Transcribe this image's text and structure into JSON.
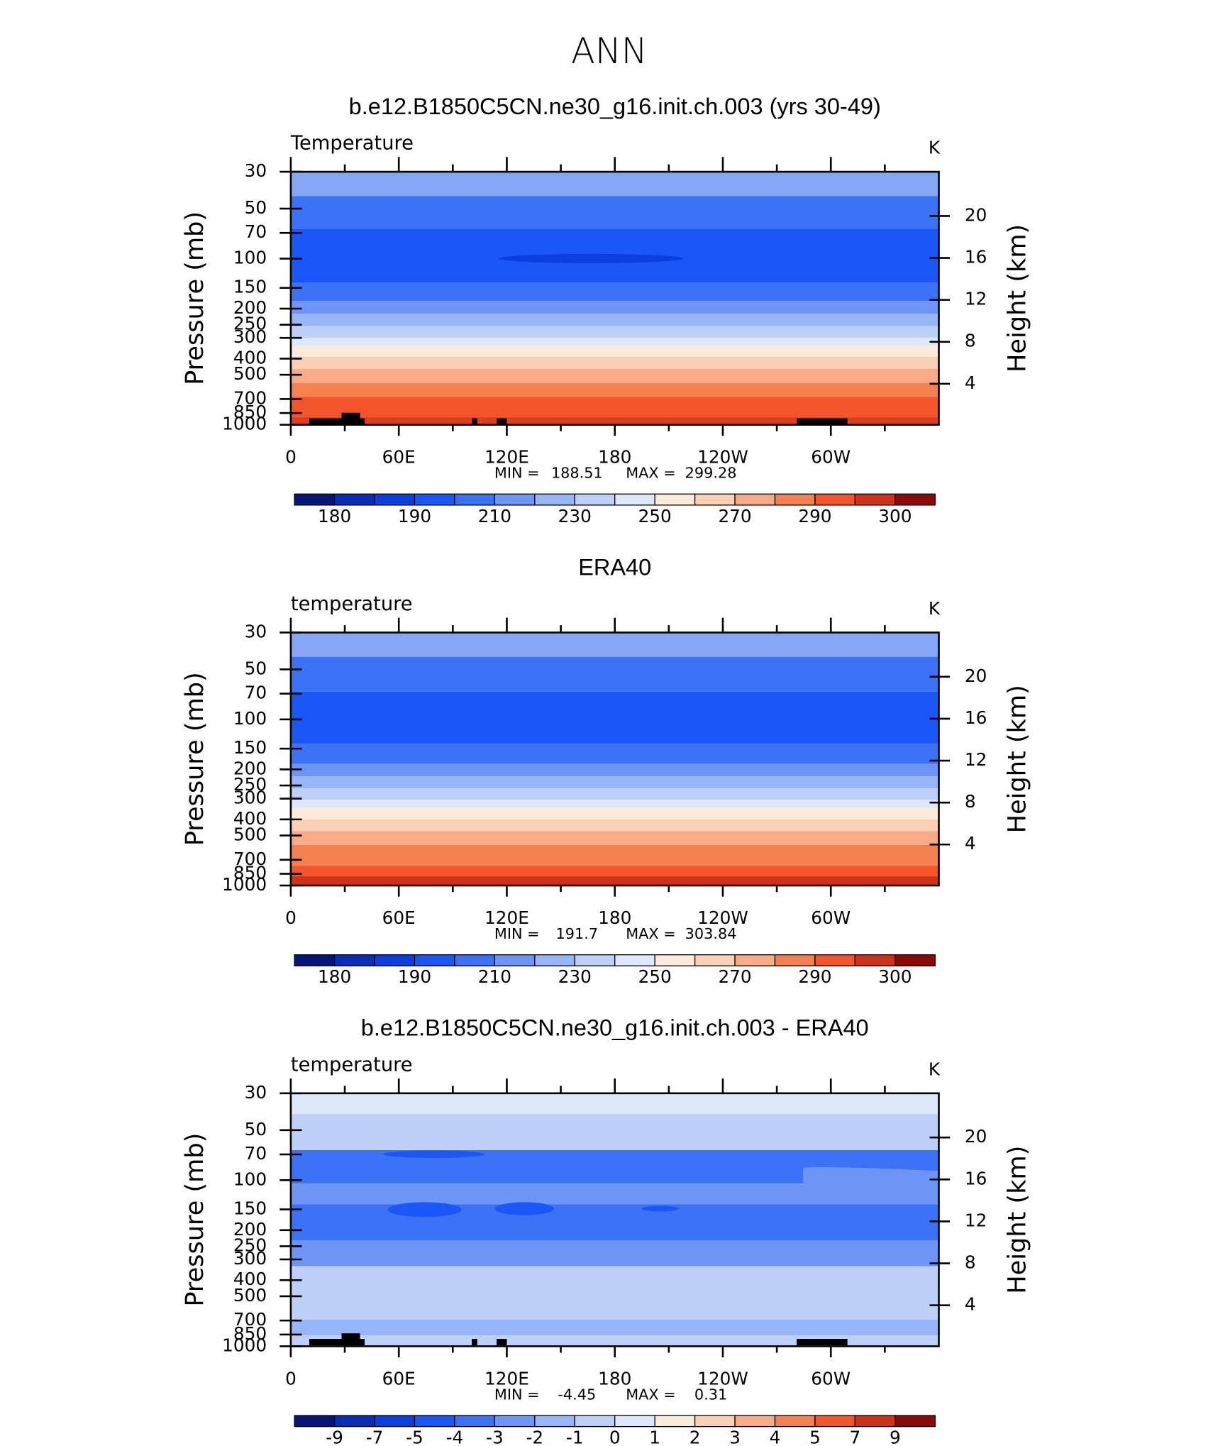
{
  "title": "ANN",
  "chart_data": [
    {
      "type": "contour",
      "title": "b.e12.B1850C5CN.ne30_g16.init.ch.003 (yrs 30-49)",
      "left_label": "Temperature",
      "units": "K",
      "ylabel": "Pressure (mb)",
      "y2label": "Height (km)",
      "ylog": true,
      "ylim": [
        1000,
        30
      ],
      "yticks": [
        30,
        50,
        70,
        100,
        150,
        200,
        250,
        300,
        400,
        500,
        700,
        850,
        1000
      ],
      "y2ticks": [
        4,
        8,
        12,
        16,
        20
      ],
      "xlim": [
        0,
        360
      ],
      "xticks": [
        0,
        {
          "value": 60,
          "label": "60E"
        },
        {
          "value": 120,
          "label": "120E"
        },
        180,
        {
          "value": 240,
          "label": "120W"
        },
        {
          "value": 300,
          "label": "60W"
        }
      ],
      "xminorticks": [
        30,
        90,
        150,
        210,
        270,
        330
      ],
      "min_label": "MIN =",
      "min": 188.51,
      "max_label": "MAX =",
      "max": 299.28,
      "bands": [
        {
          "from": 30,
          "to": 42,
          "color": "#84a6f5"
        },
        {
          "from": 42,
          "to": 66,
          "color": "#3b72f6"
        },
        {
          "from": 66,
          "to": 140,
          "color": "#1a56f8"
        },
        {
          "from": 140,
          "to": 180,
          "color": "#3b72f6"
        },
        {
          "from": 180,
          "to": 215,
          "color": "#6c95f6"
        },
        {
          "from": 215,
          "to": 255,
          "color": "#97b6f8"
        },
        {
          "from": 255,
          "to": 300,
          "color": "#bcd0fa"
        },
        {
          "from": 300,
          "to": 335,
          "color": "#dde8fb"
        },
        {
          "from": 335,
          "to": 390,
          "color": "#fcebd8"
        },
        {
          "from": 390,
          "to": 460,
          "color": "#fbd0b5"
        },
        {
          "from": 460,
          "to": 560,
          "color": "#f8ab86"
        },
        {
          "from": 560,
          "to": 680,
          "color": "#f58150"
        },
        {
          "from": 680,
          "to": 900,
          "color": "#f4552a"
        },
        {
          "from": 900,
          "to": 1000,
          "color": "#e0401c"
        }
      ],
      "colorbar": {
        "colors": [
          "#06157a",
          "#0a2cb8",
          "#0a3ee0",
          "#1a56f8",
          "#3b72f6",
          "#6c95f6",
          "#97b6f8",
          "#bcd0fa",
          "#dde8fb",
          "#fcebd8",
          "#fbd0b5",
          "#f8ab86",
          "#f58150",
          "#f4552a",
          "#cf3218",
          "#8c0a06"
        ],
        "levels": [
          180,
          null,
          190,
          null,
          210,
          null,
          230,
          null,
          250,
          null,
          270,
          null,
          290,
          null,
          300
        ]
      }
    },
    {
      "type": "contour",
      "title": "ERA40",
      "left_label": "temperature",
      "units": "K",
      "ylabel": "Pressure (mb)",
      "y2label": "Height (km)",
      "ylog": true,
      "ylim": [
        1000,
        30
      ],
      "yticks": [
        30,
        50,
        70,
        100,
        150,
        200,
        250,
        300,
        400,
        500,
        700,
        850,
        1000
      ],
      "y2ticks": [
        4,
        8,
        12,
        16,
        20
      ],
      "xlim": [
        0,
        360
      ],
      "xticks": [
        0,
        {
          "value": 60,
          "label": "60E"
        },
        {
          "value": 120,
          "label": "120E"
        },
        180,
        {
          "value": 240,
          "label": "120W"
        },
        {
          "value": 300,
          "label": "60W"
        }
      ],
      "xminorticks": [
        30,
        90,
        150,
        210,
        270,
        330
      ],
      "min_label": "MIN =",
      "min": 191.7,
      "max_label": "MAX =",
      "max": 303.84,
      "bands": [
        {
          "from": 30,
          "to": 42,
          "color": "#84a6f5"
        },
        {
          "from": 42,
          "to": 68,
          "color": "#3b72f6"
        },
        {
          "from": 68,
          "to": 140,
          "color": "#1a56f8"
        },
        {
          "from": 140,
          "to": 185,
          "color": "#3b72f6"
        },
        {
          "from": 185,
          "to": 220,
          "color": "#6c95f6"
        },
        {
          "from": 220,
          "to": 260,
          "color": "#97b6f8"
        },
        {
          "from": 260,
          "to": 305,
          "color": "#bcd0fa"
        },
        {
          "from": 305,
          "to": 340,
          "color": "#dde8fb"
        },
        {
          "from": 340,
          "to": 400,
          "color": "#fcebd8"
        },
        {
          "from": 400,
          "to": 470,
          "color": "#fbd0b5"
        },
        {
          "from": 470,
          "to": 570,
          "color": "#f8ab86"
        },
        {
          "from": 570,
          "to": 760,
          "color": "#f58150"
        },
        {
          "from": 760,
          "to": 880,
          "color": "#f4552a"
        },
        {
          "from": 880,
          "to": 1000,
          "color": "#cf3218"
        }
      ],
      "colorbar": {
        "colors": [
          "#06157a",
          "#0a2cb8",
          "#0a3ee0",
          "#1a56f8",
          "#3b72f6",
          "#6c95f6",
          "#97b6f8",
          "#bcd0fa",
          "#dde8fb",
          "#fcebd8",
          "#fbd0b5",
          "#f8ab86",
          "#f58150",
          "#f4552a",
          "#cf3218",
          "#8c0a06"
        ],
        "levels": [
          180,
          null,
          190,
          null,
          210,
          null,
          230,
          null,
          250,
          null,
          270,
          null,
          290,
          null,
          300
        ]
      }
    },
    {
      "type": "contour",
      "title": "b.e12.B1850C5CN.ne30_g16.init.ch.003 - ERA40",
      "left_label": "temperature",
      "units": "K",
      "ylabel": "Pressure (mb)",
      "y2label": "Height (km)",
      "ylog": true,
      "ylim": [
        1000,
        30
      ],
      "yticks": [
        30,
        50,
        70,
        100,
        150,
        200,
        250,
        300,
        400,
        500,
        700,
        850,
        1000
      ],
      "y2ticks": [
        4,
        8,
        12,
        16,
        20
      ],
      "xlim": [
        0,
        360
      ],
      "xticks": [
        0,
        {
          "value": 60,
          "label": "60E"
        },
        {
          "value": 120,
          "label": "120E"
        },
        180,
        {
          "value": 240,
          "label": "120W"
        },
        {
          "value": 300,
          "label": "60W"
        }
      ],
      "xminorticks": [
        30,
        90,
        150,
        210,
        270,
        330
      ],
      "min_label": "MIN =",
      "min": -4.45,
      "max_label": "MAX =",
      "max": 0.31,
      "bands": [
        {
          "from": 30,
          "to": 40,
          "color": "#dde8fb"
        },
        {
          "from": 40,
          "to": 66,
          "color": "#bcd0fa"
        },
        {
          "from": 66,
          "to": 105,
          "color": "#3b72f6"
        },
        {
          "from": 105,
          "to": 140,
          "color": "#6c95f6"
        },
        {
          "from": 140,
          "to": 230,
          "color": "#3b72f6"
        },
        {
          "from": 230,
          "to": 330,
          "color": "#6c95f6"
        },
        {
          "from": 330,
          "to": 690,
          "color": "#bcd0fa"
        },
        {
          "from": 690,
          "to": 860,
          "color": "#97b6f8"
        },
        {
          "from": 860,
          "to": 1000,
          "color": "#bcd0fa"
        }
      ],
      "colorbar": {
        "colors": [
          "#06157a",
          "#0a2cb8",
          "#0a3ee0",
          "#1a56f8",
          "#3b72f6",
          "#6c95f6",
          "#97b6f8",
          "#bcd0fa",
          "#dde8fb",
          "#fcebd8",
          "#fbd0b5",
          "#f8ab86",
          "#f58150",
          "#f4552a",
          "#cf3218",
          "#8c0a06"
        ],
        "levels": [
          -9,
          -7,
          -5,
          -4,
          -3,
          -2,
          -1,
          0,
          1,
          2,
          3,
          4,
          5,
          7,
          9
        ]
      }
    }
  ]
}
